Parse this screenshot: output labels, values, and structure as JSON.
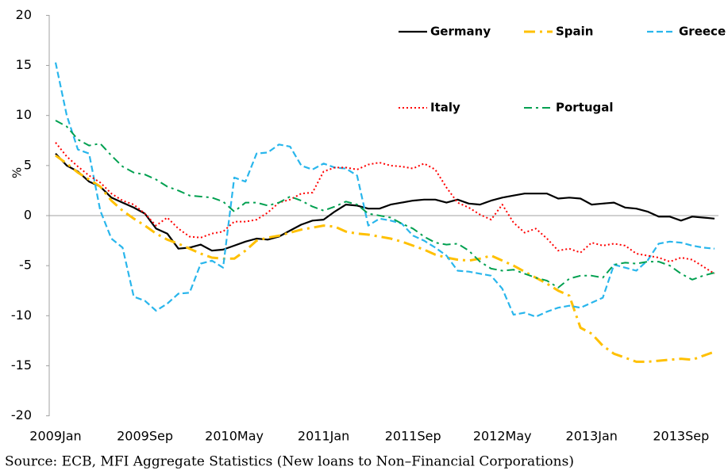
{
  "chart_data": {
    "type": "line",
    "y_label": "%",
    "source": "Source: ECB, MFI Aggregate Statistics (New loans to Non–Financial Corporations)",
    "categories": [
      "2009Jan",
      null,
      null,
      null,
      null,
      null,
      null,
      null,
      "2009Sep",
      null,
      null,
      null,
      null,
      null,
      null,
      null,
      "2010May",
      null,
      null,
      null,
      null,
      null,
      null,
      null,
      "2011Jan",
      null,
      null,
      null,
      null,
      null,
      null,
      null,
      "2011Sep",
      null,
      null,
      null,
      null,
      null,
      null,
      null,
      "2012May",
      null,
      null,
      null,
      null,
      null,
      null,
      null,
      "2013Jan",
      null,
      null,
      null,
      null,
      null,
      null,
      null,
      "2013Sep",
      null,
      null,
      null
    ],
    "ylim": [
      -20,
      20
    ],
    "yticks": [
      -20,
      -15,
      -10,
      -5,
      0,
      5,
      10,
      15,
      20
    ],
    "grid": false,
    "legend": "top-right",
    "series": [
      {
        "name": "Germany",
        "color": "#000000",
        "values": [
          6.2,
          5.0,
          4.4,
          3.4,
          2.9,
          1.8,
          1.3,
          0.8,
          0.2,
          -1.3,
          -1.8,
          -3.3,
          -3.2,
          -2.9,
          -3.5,
          -3.4,
          -3.0,
          -2.6,
          -2.3,
          -2.4,
          -2.1,
          -1.5,
          -0.9,
          -0.5,
          -0.4,
          0.4,
          1.1,
          1.0,
          0.7,
          0.7,
          1.1,
          1.3,
          1.5,
          1.6,
          1.6,
          1.3,
          1.6,
          1.2,
          1.1,
          1.5,
          1.8,
          2.0,
          2.2,
          2.2,
          2.2,
          1.7,
          1.8,
          1.7,
          1.1,
          1.2,
          1.3,
          0.8,
          0.7,
          0.4,
          -0.1,
          -0.1,
          -0.5,
          -0.1,
          -0.2,
          -0.3
        ]
      },
      {
        "name": "Spain",
        "color": "#ffc000",
        "values": [
          6.0,
          5.2,
          4.3,
          3.6,
          2.9,
          1.5,
          0.5,
          -0.3,
          -1.0,
          -1.8,
          -2.4,
          -2.8,
          -3.3,
          -3.8,
          -4.2,
          -4.3,
          -4.3,
          -3.5,
          -2.5,
          -2.2,
          -2.0,
          -1.7,
          -1.4,
          -1.2,
          -1.0,
          -1.1,
          -1.6,
          -1.8,
          -1.9,
          -2.1,
          -2.3,
          -2.6,
          -3.0,
          -3.4,
          -3.9,
          -4.2,
          -4.4,
          -4.5,
          -4.3,
          -4.0,
          -4.5,
          -5.0,
          -5.6,
          -6.2,
          -6.8,
          -7.5,
          -8.0,
          -11.2,
          -11.8,
          -13.0,
          -13.8,
          -14.2,
          -14.6,
          -14.6,
          -14.5,
          -14.4,
          -14.3,
          -14.4,
          -14.0,
          -13.6
        ]
      },
      {
        "name": "Greece",
        "color": "#29b6ec",
        "values": [
          15.3,
          10.0,
          6.6,
          6.2,
          0.5,
          -2.3,
          -3.2,
          -8.1,
          -8.5,
          -9.5,
          -8.8,
          -7.8,
          -7.7,
          -4.8,
          -4.5,
          -5.2,
          3.8,
          3.4,
          6.2,
          6.3,
          7.1,
          6.9,
          5.0,
          4.6,
          5.2,
          4.8,
          4.7,
          4.0,
          -1.0,
          -0.3,
          -0.5,
          -0.8,
          -2.0,
          -2.5,
          -3.2,
          -4.0,
          -5.5,
          -5.6,
          -5.8,
          -6.0,
          -7.3,
          -9.9,
          -9.7,
          -10.1,
          -9.6,
          -9.2,
          -9.0,
          -9.2,
          -8.7,
          -8.2,
          -4.9,
          -5.2,
          -5.5,
          -4.5,
          -2.8,
          -2.6,
          -2.7,
          -3.0,
          -3.2,
          -3.3
        ]
      },
      {
        "name": "Italy",
        "color": "#ff0000",
        "values": [
          7.3,
          5.9,
          4.9,
          4.0,
          3.3,
          2.2,
          1.5,
          1.1,
          0.2,
          -1.0,
          -0.2,
          -1.3,
          -2.1,
          -2.2,
          -1.8,
          -1.6,
          -0.6,
          -0.6,
          -0.4,
          0.3,
          1.3,
          1.6,
          2.2,
          2.3,
          4.4,
          4.8,
          4.8,
          4.6,
          5.1,
          5.3,
          5.0,
          4.9,
          4.7,
          5.2,
          4.6,
          2.8,
          1.3,
          0.8,
          0.1,
          -0.4,
          1.1,
          -0.7,
          -1.7,
          -1.3,
          -2.3,
          -3.5,
          -3.3,
          -3.7,
          -2.7,
          -3.0,
          -2.8,
          -3.0,
          -3.8,
          -4.0,
          -4.2,
          -4.6,
          -4.2,
          -4.4,
          -5.1,
          -5.8
        ]
      },
      {
        "name": "Portugal",
        "color": "#00a050",
        "values": [
          9.5,
          8.9,
          7.6,
          7.0,
          7.2,
          6.0,
          4.9,
          4.3,
          4.1,
          3.6,
          2.9,
          2.5,
          2.0,
          1.9,
          1.8,
          1.4,
          0.4,
          1.3,
          1.3,
          1.0,
          1.3,
          1.9,
          1.5,
          0.9,
          0.5,
          0.9,
          1.4,
          1.1,
          0.2,
          0.0,
          -0.2,
          -0.8,
          -1.3,
          -2.1,
          -2.7,
          -2.9,
          -2.8,
          -3.5,
          -4.6,
          -5.3,
          -5.5,
          -5.4,
          -5.8,
          -6.2,
          -6.5,
          -7.2,
          -6.3,
          -6.0,
          -6.0,
          -6.2,
          -4.9,
          -4.7,
          -4.8,
          -4.6,
          -4.6,
          -5.0,
          -5.8,
          -6.4,
          -6.0,
          -5.7
        ]
      }
    ]
  }
}
